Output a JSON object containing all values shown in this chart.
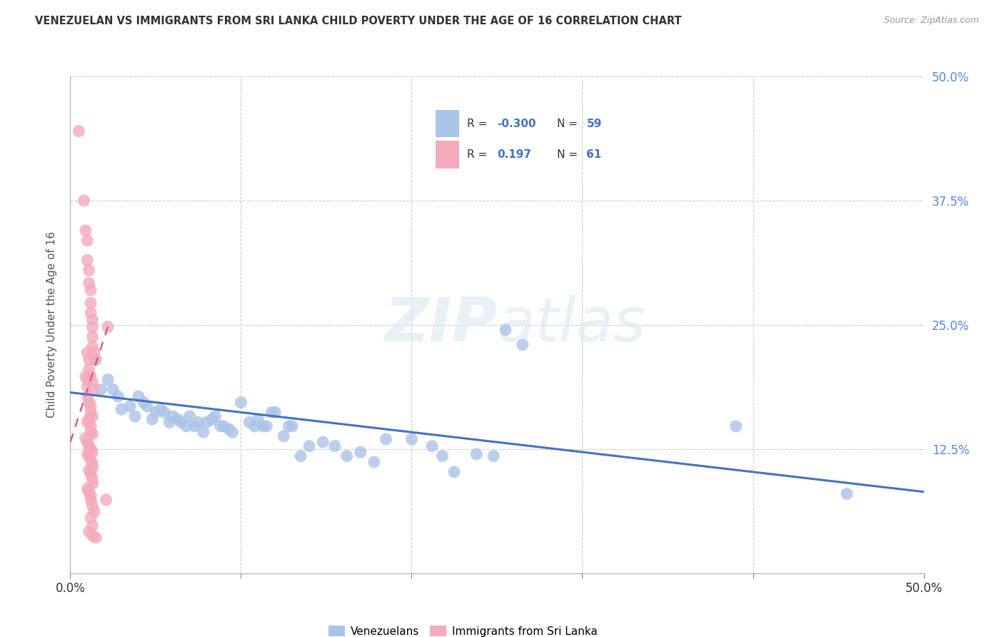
{
  "title": "VENEZUELAN VS IMMIGRANTS FROM SRI LANKA CHILD POVERTY UNDER THE AGE OF 16 CORRELATION CHART",
  "source": "Source: ZipAtlas.com",
  "ylabel": "Child Poverty Under the Age of 16",
  "legend_blue_R": "-0.300",
  "legend_blue_N": "59",
  "legend_pink_R": "0.197",
  "legend_pink_N": "61",
  "legend_label_blue": "Venezuelans",
  "legend_label_pink": "Immigrants from Sri Lanka",
  "blue_color": "#aac4e8",
  "pink_color": "#f4aabb",
  "blue_line_color": "#4472c4",
  "pink_line_color": "#d46080",
  "watermark_zip": "ZIP",
  "watermark_atlas": "atlas",
  "xlim": [
    0.0,
    0.5
  ],
  "ylim": [
    0.0,
    0.5
  ],
  "blue_dots": [
    [
      0.01,
      0.195
    ],
    [
      0.015,
      0.215
    ],
    [
      0.018,
      0.185
    ],
    [
      0.022,
      0.195
    ],
    [
      0.025,
      0.185
    ],
    [
      0.028,
      0.178
    ],
    [
      0.03,
      0.165
    ],
    [
      0.035,
      0.168
    ],
    [
      0.038,
      0.158
    ],
    [
      0.04,
      0.178
    ],
    [
      0.043,
      0.172
    ],
    [
      0.045,
      0.168
    ],
    [
      0.048,
      0.155
    ],
    [
      0.05,
      0.162
    ],
    [
      0.053,
      0.165
    ],
    [
      0.055,
      0.162
    ],
    [
      0.058,
      0.152
    ],
    [
      0.06,
      0.158
    ],
    [
      0.063,
      0.155
    ],
    [
      0.065,
      0.152
    ],
    [
      0.068,
      0.148
    ],
    [
      0.07,
      0.158
    ],
    [
      0.073,
      0.148
    ],
    [
      0.075,
      0.152
    ],
    [
      0.078,
      0.142
    ],
    [
      0.08,
      0.152
    ],
    [
      0.083,
      0.155
    ],
    [
      0.085,
      0.158
    ],
    [
      0.088,
      0.148
    ],
    [
      0.09,
      0.148
    ],
    [
      0.093,
      0.145
    ],
    [
      0.095,
      0.142
    ],
    [
      0.1,
      0.172
    ],
    [
      0.105,
      0.152
    ],
    [
      0.108,
      0.148
    ],
    [
      0.11,
      0.155
    ],
    [
      0.113,
      0.148
    ],
    [
      0.115,
      0.148
    ],
    [
      0.118,
      0.162
    ],
    [
      0.12,
      0.162
    ],
    [
      0.125,
      0.138
    ],
    [
      0.128,
      0.148
    ],
    [
      0.13,
      0.148
    ],
    [
      0.135,
      0.118
    ],
    [
      0.14,
      0.128
    ],
    [
      0.148,
      0.132
    ],
    [
      0.155,
      0.128
    ],
    [
      0.162,
      0.118
    ],
    [
      0.17,
      0.122
    ],
    [
      0.178,
      0.112
    ],
    [
      0.185,
      0.135
    ],
    [
      0.2,
      0.135
    ],
    [
      0.212,
      0.128
    ],
    [
      0.218,
      0.118
    ],
    [
      0.225,
      0.102
    ],
    [
      0.238,
      0.12
    ],
    [
      0.248,
      0.118
    ],
    [
      0.255,
      0.245
    ],
    [
      0.265,
      0.23
    ],
    [
      0.39,
      0.148
    ],
    [
      0.455,
      0.08
    ]
  ],
  "pink_dots": [
    [
      0.005,
      0.445
    ],
    [
      0.008,
      0.375
    ],
    [
      0.009,
      0.345
    ],
    [
      0.01,
      0.335
    ],
    [
      0.01,
      0.315
    ],
    [
      0.011,
      0.305
    ],
    [
      0.011,
      0.292
    ],
    [
      0.012,
      0.285
    ],
    [
      0.012,
      0.272
    ],
    [
      0.012,
      0.262
    ],
    [
      0.013,
      0.255
    ],
    [
      0.013,
      0.248
    ],
    [
      0.013,
      0.238
    ],
    [
      0.013,
      0.228
    ],
    [
      0.014,
      0.222
    ],
    [
      0.014,
      0.215
    ],
    [
      0.01,
      0.222
    ],
    [
      0.011,
      0.215
    ],
    [
      0.011,
      0.205
    ],
    [
      0.012,
      0.198
    ],
    [
      0.013,
      0.192
    ],
    [
      0.014,
      0.185
    ],
    [
      0.009,
      0.198
    ],
    [
      0.01,
      0.188
    ],
    [
      0.01,
      0.178
    ],
    [
      0.011,
      0.172
    ],
    [
      0.012,
      0.168
    ],
    [
      0.012,
      0.162
    ],
    [
      0.013,
      0.158
    ],
    [
      0.011,
      0.155
    ],
    [
      0.01,
      0.152
    ],
    [
      0.012,
      0.148
    ],
    [
      0.012,
      0.142
    ],
    [
      0.013,
      0.14
    ],
    [
      0.009,
      0.136
    ],
    [
      0.01,
      0.132
    ],
    [
      0.011,
      0.128
    ],
    [
      0.012,
      0.125
    ],
    [
      0.013,
      0.122
    ],
    [
      0.01,
      0.12
    ],
    [
      0.011,
      0.118
    ],
    [
      0.012,
      0.114
    ],
    [
      0.013,
      0.11
    ],
    [
      0.013,
      0.106
    ],
    [
      0.011,
      0.104
    ],
    [
      0.012,
      0.1
    ],
    [
      0.013,
      0.095
    ],
    [
      0.013,
      0.09
    ],
    [
      0.01,
      0.085
    ],
    [
      0.011,
      0.082
    ],
    [
      0.012,
      0.078
    ],
    [
      0.012,
      0.074
    ],
    [
      0.013,
      0.068
    ],
    [
      0.014,
      0.062
    ],
    [
      0.012,
      0.056
    ],
    [
      0.013,
      0.048
    ],
    [
      0.011,
      0.042
    ],
    [
      0.013,
      0.038
    ],
    [
      0.015,
      0.036
    ],
    [
      0.021,
      0.074
    ],
    [
      0.022,
      0.248
    ]
  ],
  "blue_trend_x": [
    0.0,
    0.5
  ],
  "blue_trend_y": [
    0.182,
    0.082
  ],
  "pink_trend_x": [
    0.0,
    0.022
  ],
  "pink_trend_y": [
    0.132,
    0.248
  ]
}
